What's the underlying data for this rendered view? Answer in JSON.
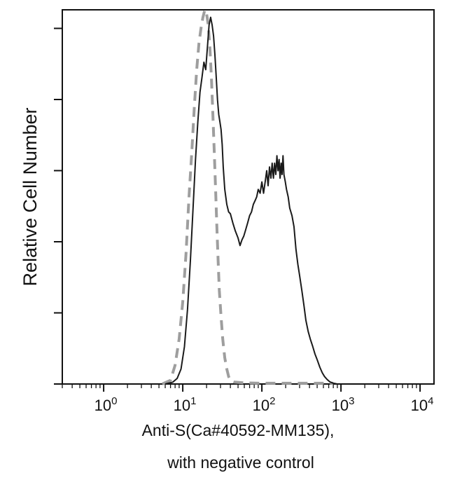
{
  "chart_data": {
    "type": "line",
    "title": "",
    "xlabel_line1": "Anti-S(Ca#40592-MM135),",
    "xlabel_line2": "with negative control",
    "ylabel": "Relative Cell Number",
    "x_scale": "log",
    "xlim": [
      0.3,
      15000
    ],
    "ylim": [
      0,
      100
    ],
    "x_ticks": [
      1,
      10,
      100,
      1000,
      10000
    ],
    "x_tick_labels": [
      {
        "base": "10",
        "exp": "0"
      },
      {
        "base": "10",
        "exp": "1"
      },
      {
        "base": "10",
        "exp": "2"
      },
      {
        "base": "10",
        "exp": "3"
      },
      {
        "base": "10",
        "exp": "4"
      }
    ],
    "y_ticks_count": 6,
    "grid": false,
    "legend": "none",
    "series": [
      {
        "style": "solid",
        "color": "#1a1a1a",
        "points": [
          [
            6.0,
            0
          ],
          [
            7.5,
            0.5
          ],
          [
            8.5,
            1.5
          ],
          [
            9.5,
            4
          ],
          [
            10.5,
            10
          ],
          [
            11.5,
            20
          ],
          [
            12.5,
            33
          ],
          [
            13.5,
            47
          ],
          [
            14.5,
            60
          ],
          [
            15.5,
            70
          ],
          [
            16.5,
            78
          ],
          [
            17.5,
            82
          ],
          [
            18.5,
            86
          ],
          [
            19.5,
            84
          ],
          [
            20.5,
            90
          ],
          [
            21.5,
            96
          ],
          [
            22.5,
            98
          ],
          [
            23.5,
            96
          ],
          [
            24.5,
            93
          ],
          [
            25.5,
            88
          ],
          [
            26.5,
            82
          ],
          [
            27.5,
            76
          ],
          [
            28.5,
            72
          ],
          [
            29.5,
            70
          ],
          [
            30.5,
            68
          ],
          [
            31.5,
            64
          ],
          [
            32.5,
            58
          ],
          [
            34,
            52
          ],
          [
            36,
            48
          ],
          [
            38,
            46
          ],
          [
            40,
            45.5
          ],
          [
            43,
            43
          ],
          [
            46,
            41
          ],
          [
            50,
            39
          ],
          [
            53,
            37
          ],
          [
            56,
            38.5
          ],
          [
            59,
            39.5
          ],
          [
            62,
            41
          ],
          [
            66,
            43
          ],
          [
            70,
            45
          ],
          [
            74,
            46
          ],
          [
            78,
            48
          ],
          [
            82,
            49
          ],
          [
            86,
            50
          ],
          [
            90,
            52
          ],
          [
            95,
            51
          ],
          [
            100,
            54
          ],
          [
            105,
            51
          ],
          [
            110,
            54
          ],
          [
            115,
            57
          ],
          [
            120,
            53
          ],
          [
            125,
            58
          ],
          [
            130,
            55
          ],
          [
            135,
            59
          ],
          [
            140,
            55
          ],
          [
            145,
            59
          ],
          [
            150,
            56
          ],
          [
            155,
            61
          ],
          [
            160,
            57
          ],
          [
            165,
            60
          ],
          [
            170,
            55
          ],
          [
            175,
            59
          ],
          [
            180,
            56
          ],
          [
            185,
            61
          ],
          [
            190,
            56
          ],
          [
            198,
            54
          ],
          [
            205,
            52
          ],
          [
            215,
            50
          ],
          [
            225,
            47
          ],
          [
            240,
            45
          ],
          [
            255,
            42
          ],
          [
            270,
            36
          ],
          [
            285,
            32
          ],
          [
            300,
            29
          ],
          [
            320,
            25
          ],
          [
            340,
            21
          ],
          [
            360,
            17
          ],
          [
            385,
            14
          ],
          [
            410,
            12
          ],
          [
            440,
            10
          ],
          [
            470,
            8
          ],
          [
            500,
            6.5
          ],
          [
            540,
            4.5
          ],
          [
            580,
            3
          ],
          [
            620,
            2
          ],
          [
            670,
            1.2
          ],
          [
            720,
            0.6
          ],
          [
            800,
            0.2
          ],
          [
            900,
            0
          ]
        ]
      },
      {
        "style": "dashed",
        "color": "#9e9e9e",
        "points": [
          [
            5.5,
            0
          ],
          [
            7.0,
            1
          ],
          [
            8.0,
            5
          ],
          [
            9.0,
            12
          ],
          [
            10.0,
            22
          ],
          [
            11.0,
            35
          ],
          [
            12.0,
            50
          ],
          [
            13.0,
            62
          ],
          [
            14.0,
            74
          ],
          [
            15.0,
            84
          ],
          [
            16.0,
            91
          ],
          [
            17.0,
            95
          ],
          [
            18.0,
            98
          ],
          [
            19.0,
            100
          ],
          [
            20.0,
            99
          ],
          [
            21.0,
            96
          ],
          [
            22.0,
            90
          ],
          [
            23.0,
            82
          ],
          [
            24.0,
            72
          ],
          [
            25.0,
            62
          ],
          [
            26.0,
            52
          ],
          [
            27.0,
            42
          ],
          [
            28.0,
            33
          ],
          [
            29.0,
            25
          ],
          [
            30.5,
            18
          ],
          [
            32.0,
            12
          ],
          [
            34.0,
            7
          ],
          [
            36.0,
            4
          ],
          [
            38.0,
            2
          ],
          [
            40.0,
            1
          ],
          [
            45.0,
            0.5
          ],
          [
            60.0,
            0.3
          ],
          [
            100.0,
            0.2
          ],
          [
            200.0,
            0.2
          ],
          [
            400.0,
            0.2
          ],
          [
            800.0,
            0.2
          ]
        ]
      }
    ]
  }
}
